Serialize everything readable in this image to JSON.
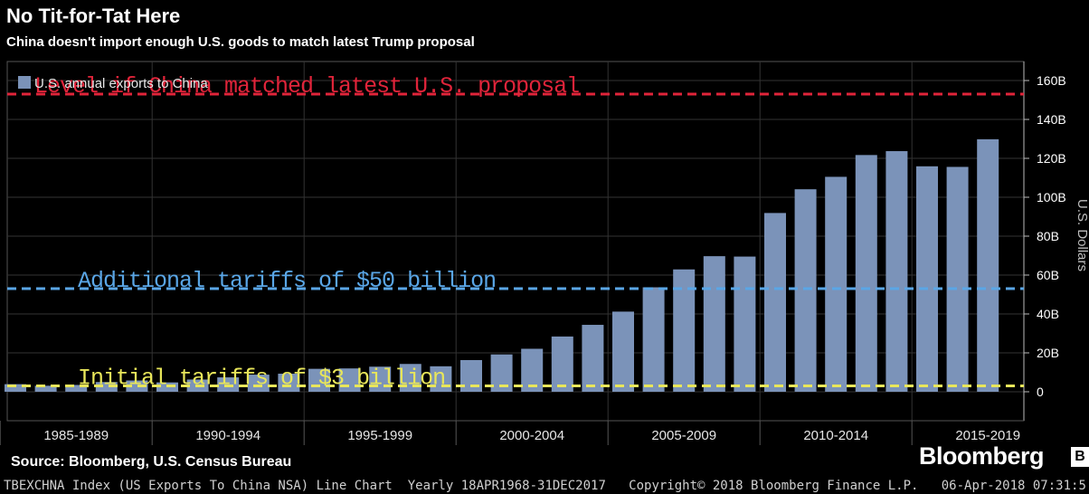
{
  "header": {
    "title": "No Tit-for-Tat Here",
    "subtitle": "China doesn't import enough U.S. goods to match latest Trump proposal"
  },
  "footer": {
    "source": "Source: Bloomberg, U.S. Census Bureau",
    "logo": "Bloomberg",
    "logo_mark": "B",
    "ticker_line": "TBEXCHNA Index (US Exports To China NSA) Line Chart  Yearly 18APR1968-31DEC2017   Copyright© 2018 Bloomberg Finance L.P.   06-Apr-2018 07:31:5"
  },
  "colors": {
    "background": "#000000",
    "bar": "#7b93b9",
    "proposal_line": "#e0243a",
    "fifty_line": "#5aa6e6",
    "three_line": "#e8e65a",
    "grid": "#333333",
    "axis_text": "#ffffff"
  },
  "chart_data": {
    "type": "bar",
    "legend": {
      "label": "U.S. annual exports to China",
      "position": "top-left"
    },
    "ylabel": "U.S. Dollars",
    "ylim": [
      0,
      160
    ],
    "yticks": [
      "0",
      "20B",
      "40B",
      "60B",
      "80B",
      "100B",
      "120B",
      "140B",
      "160B"
    ],
    "ytick_values": [
      0,
      20,
      40,
      60,
      80,
      100,
      120,
      140,
      160
    ],
    "categories": [
      "1985",
      "1986",
      "1987",
      "1988",
      "1989",
      "1990",
      "1991",
      "1992",
      "1993",
      "1994",
      "1995",
      "1996",
      "1997",
      "1998",
      "1999",
      "2000",
      "2001",
      "2002",
      "2003",
      "2004",
      "2005",
      "2006",
      "2007",
      "2008",
      "2009",
      "2010",
      "2011",
      "2012",
      "2013",
      "2014",
      "2015",
      "2016",
      "2017"
    ],
    "values": [
      3.9,
      3.1,
      3.5,
      5.0,
      5.8,
      4.8,
      6.3,
      7.4,
      8.8,
      9.3,
      11.8,
      12.0,
      12.9,
      14.3,
      13.1,
      16.3,
      19.2,
      22.1,
      28.4,
      34.4,
      41.2,
      53.7,
      62.9,
      69.7,
      69.5,
      91.9,
      104.1,
      110.5,
      121.7,
      123.7,
      115.9,
      115.6,
      129.8
    ],
    "xgroups": [
      {
        "label": "1985-1989",
        "start": 1985,
        "end": 1989
      },
      {
        "label": "1990-1994",
        "start": 1990,
        "end": 1994
      },
      {
        "label": "1995-1999",
        "start": 1995,
        "end": 1999
      },
      {
        "label": "2000-2004",
        "start": 2000,
        "end": 2004
      },
      {
        "label": "2005-2009",
        "start": 2005,
        "end": 2009
      },
      {
        "label": "2010-2014",
        "start": 2010,
        "end": 2014
      },
      {
        "label": "2015-2019",
        "start": 2015,
        "end": 2019
      }
    ],
    "reference_lines": [
      {
        "label": "Level if China matched latest U.S. proposal",
        "value": 153,
        "color": "#e0243a"
      },
      {
        "label": "Additional tariffs of $50 billion",
        "value": 53,
        "color": "#5aa6e6"
      },
      {
        "label": "Initial tariffs of $3 billion",
        "value": 3,
        "color": "#e8e65a"
      }
    ],
    "grid": true
  }
}
